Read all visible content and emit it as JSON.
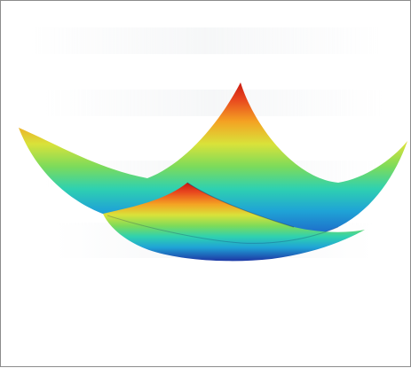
{
  "figure": {
    "subject": "surface-plot",
    "colormap": [
      "#1a237e",
      "#1e63c8",
      "#1fa3d6",
      "#2fd1b0",
      "#7ddb5a",
      "#d9e23a",
      "#f4a323",
      "#e8461e",
      "#c7160f"
    ],
    "frame_color": "#8c8c8c",
    "background": "#ffffff"
  }
}
